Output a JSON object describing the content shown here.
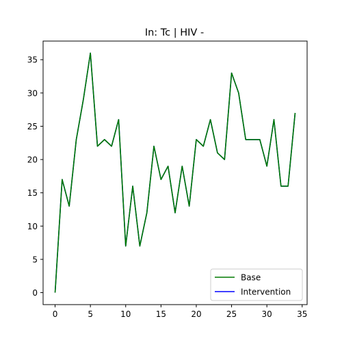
{
  "chart_data": {
    "type": "line",
    "title": "In: Tc | HIV -",
    "xlabel": "",
    "ylabel": "",
    "xlim": [
      -1.7,
      35.7
    ],
    "ylim": [
      -1.8,
      37.8
    ],
    "xticks": [
      0,
      5,
      10,
      15,
      20,
      25,
      30,
      35
    ],
    "yticks": [
      0,
      5,
      10,
      15,
      20,
      25,
      30,
      35
    ],
    "grid": false,
    "legend_position": "lower-right",
    "x": [
      0,
      1,
      2,
      3,
      4,
      5,
      6,
      7,
      8,
      9,
      10,
      11,
      12,
      13,
      14,
      15,
      16,
      17,
      18,
      19,
      20,
      21,
      22,
      23,
      24,
      25,
      26,
      27,
      28,
      29,
      30,
      31,
      32,
      33,
      34
    ],
    "series": [
      {
        "name": "Base",
        "color": "#007a00",
        "values": [
          0,
          17,
          13,
          23,
          29,
          36,
          22,
          23,
          22,
          26,
          7,
          16,
          7,
          12,
          22,
          17,
          19,
          12,
          19,
          13,
          23,
          22,
          26,
          21,
          20,
          33,
          30,
          23,
          23,
          23,
          19,
          26,
          16,
          16,
          27
        ]
      },
      {
        "name": "Intervention",
        "color": "#0000ff",
        "values": [
          0,
          17,
          13,
          23,
          29,
          36,
          22,
          23,
          22,
          26,
          7,
          16,
          7,
          12,
          22,
          17,
          19,
          12,
          19,
          13,
          23,
          22,
          26,
          21,
          20,
          33,
          30,
          23,
          23,
          23,
          19,
          26,
          16,
          16,
          27
        ]
      }
    ]
  }
}
